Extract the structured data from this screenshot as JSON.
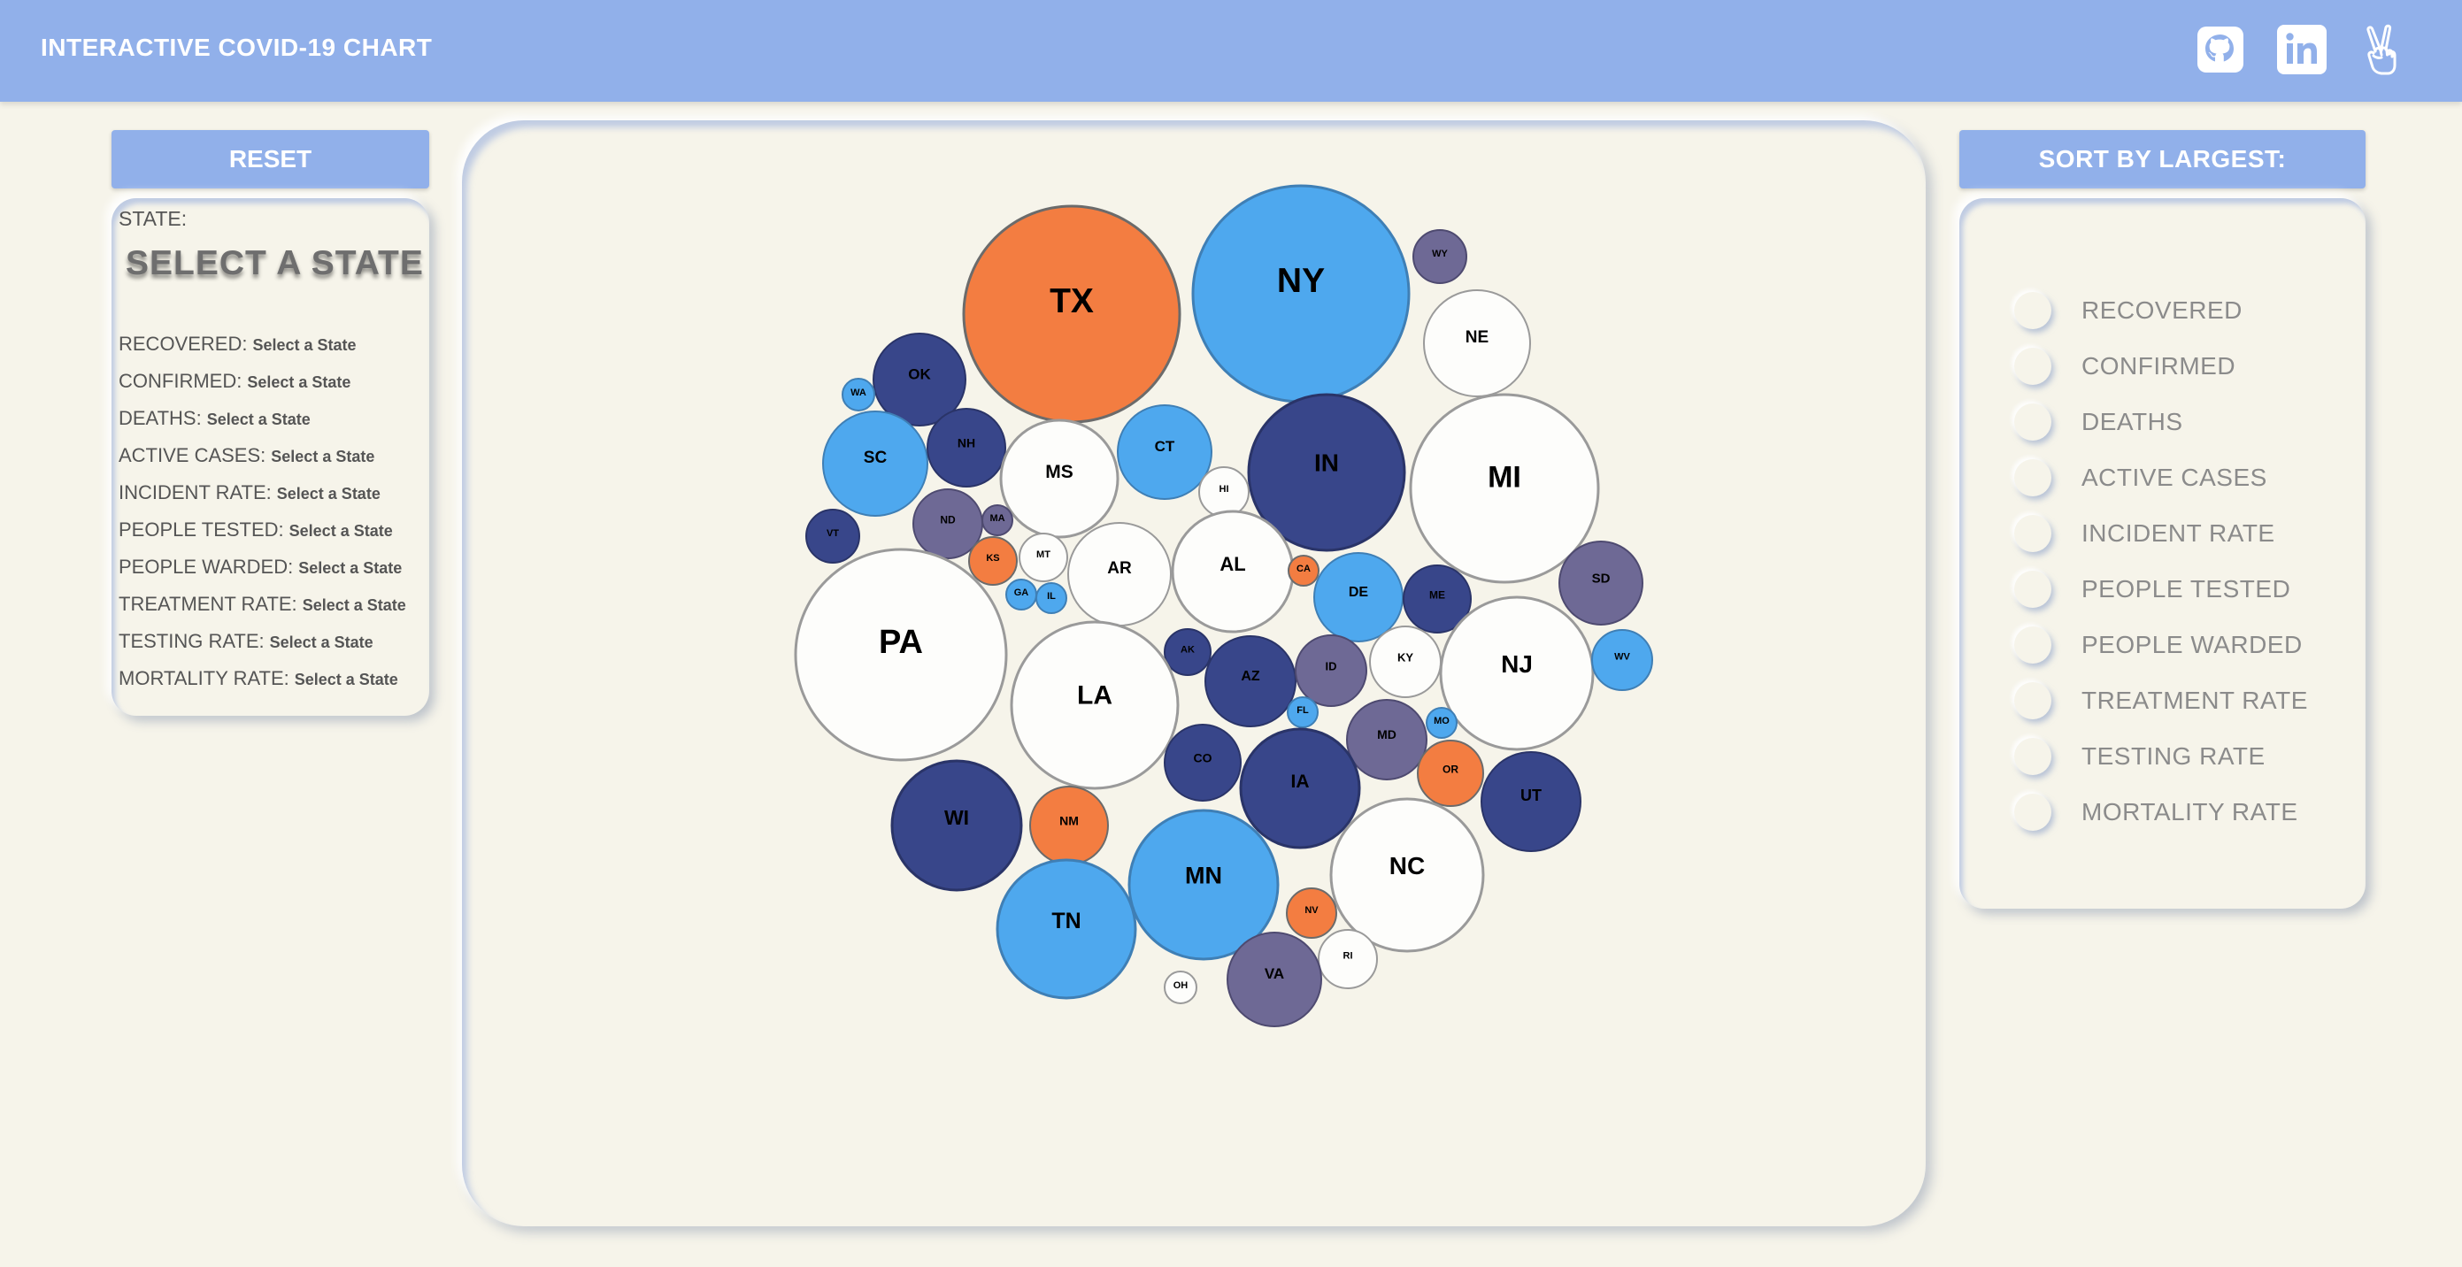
{
  "header": {
    "title": "INTERACTIVE COVID-19 CHART"
  },
  "buttons": {
    "reset": "RESET",
    "sort": "SORT BY LARGEST:"
  },
  "icons": {
    "github": "github-icon",
    "linkedin": "linkedin-icon",
    "peace": "peace-hand-icon"
  },
  "colors": {
    "accent": "#91b0ea",
    "background": "#f6f4ea",
    "dark_blue": "#38468a",
    "light_blue": "#4ea8ee",
    "orange": "#f37d41",
    "purple": "#6e6995",
    "white": "#fdfdfb"
  },
  "info": {
    "state_label": "STATE:",
    "state_value": "SELECT A STATE",
    "stats": [
      {
        "label": "RECOVERED:",
        "value": "Select a State"
      },
      {
        "label": "CONFIRMED:",
        "value": "Select a State"
      },
      {
        "label": "DEATHS:",
        "value": "Select a State"
      },
      {
        "label": "ACTIVE CASES:",
        "value": "Select a State"
      },
      {
        "label": "INCIDENT RATE:",
        "value": "Select a State"
      },
      {
        "label": "PEOPLE TESTED:",
        "value": "Select a State"
      },
      {
        "label": "PEOPLE WARDED:",
        "value": "Select a State"
      },
      {
        "label": "TREATMENT RATE:",
        "value": "Select a State"
      },
      {
        "label": "TESTING RATE:",
        "value": "Select a State"
      },
      {
        "label": "MORTALITY RATE:",
        "value": "Select a State"
      }
    ]
  },
  "sort_options": [
    "RECOVERED",
    "CONFIRMED",
    "DEATHS",
    "ACTIVE CASES",
    "INCIDENT RATE",
    "PEOPLE TESTED",
    "PEOPLE WARDED",
    "TREATMENT RATE",
    "TESTING RATE",
    "MORTALITY RATE"
  ],
  "bubbles": [
    {
      "state": "TX",
      "color": "orange"
    },
    {
      "state": "NY",
      "color": "light_blue"
    },
    {
      "state": "WY",
      "color": "purple"
    },
    {
      "state": "NE",
      "color": "white"
    },
    {
      "state": "OK",
      "color": "dark_blue"
    },
    {
      "state": "WA",
      "color": "light_blue"
    },
    {
      "state": "SC",
      "color": "light_blue"
    },
    {
      "state": "NH",
      "color": "dark_blue"
    },
    {
      "state": "MS",
      "color": "white"
    },
    {
      "state": "CT",
      "color": "light_blue"
    },
    {
      "state": "IN",
      "color": "dark_blue"
    },
    {
      "state": "MI",
      "color": "white"
    },
    {
      "state": "HI",
      "color": "white"
    },
    {
      "state": "VT",
      "color": "dark_blue"
    },
    {
      "state": "ND",
      "color": "purple"
    },
    {
      "state": "MA",
      "color": "purple"
    },
    {
      "state": "KS",
      "color": "orange"
    },
    {
      "state": "MT",
      "color": "white"
    },
    {
      "state": "AR",
      "color": "white"
    },
    {
      "state": "AL",
      "color": "white"
    },
    {
      "state": "CA",
      "color": "orange"
    },
    {
      "state": "DE",
      "color": "light_blue"
    },
    {
      "state": "ME",
      "color": "dark_blue"
    },
    {
      "state": "SD",
      "color": "purple"
    },
    {
      "state": "GA",
      "color": "light_blue"
    },
    {
      "state": "IL",
      "color": "light_blue"
    },
    {
      "state": "PA",
      "color": "white"
    },
    {
      "state": "AK",
      "color": "dark_blue"
    },
    {
      "state": "LA",
      "color": "white"
    },
    {
      "state": "AZ",
      "color": "dark_blue"
    },
    {
      "state": "ID",
      "color": "purple"
    },
    {
      "state": "KY",
      "color": "white"
    },
    {
      "state": "NJ",
      "color": "white"
    },
    {
      "state": "WV",
      "color": "light_blue"
    },
    {
      "state": "FL",
      "color": "light_blue"
    },
    {
      "state": "MD",
      "color": "purple"
    },
    {
      "state": "MO",
      "color": "light_blue"
    },
    {
      "state": "CO",
      "color": "dark_blue"
    },
    {
      "state": "IA",
      "color": "dark_blue"
    },
    {
      "state": "OR",
      "color": "orange"
    },
    {
      "state": "UT",
      "color": "dark_blue"
    },
    {
      "state": "WI",
      "color": "dark_blue"
    },
    {
      "state": "NM",
      "color": "orange"
    },
    {
      "state": "MN",
      "color": "light_blue"
    },
    {
      "state": "NC",
      "color": "white"
    },
    {
      "state": "TN",
      "color": "light_blue"
    },
    {
      "state": "NV",
      "color": "orange"
    },
    {
      "state": "RI",
      "color": "white"
    },
    {
      "state": "OH",
      "color": "white"
    },
    {
      "state": "VA",
      "color": "purple"
    }
  ]
}
